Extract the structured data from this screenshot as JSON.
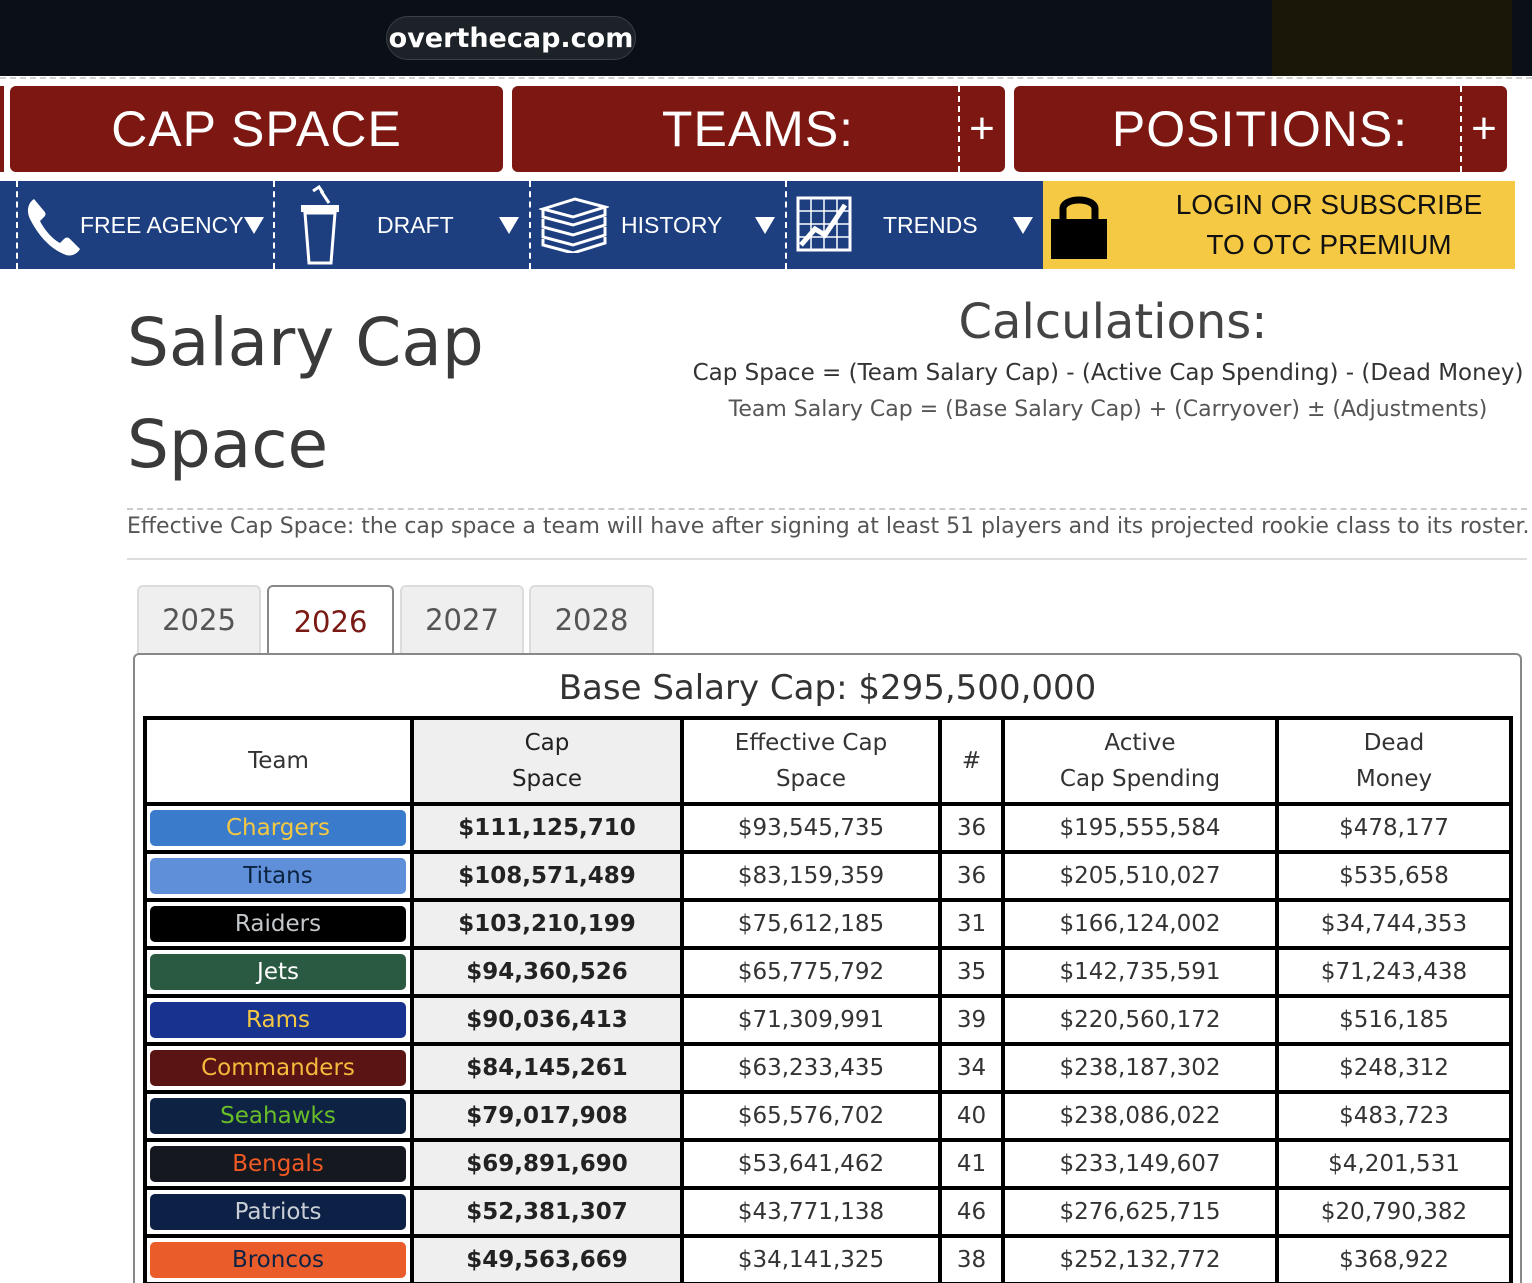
{
  "browser": {
    "url": "overthecap.com"
  },
  "main_nav": {
    "cap_space": "CAP SPACE",
    "teams": "TEAMS:",
    "positions": "POSITIONS:",
    "plus": "+"
  },
  "sub_nav": {
    "free_agency": "FREE AGENCY",
    "draft": "DRAFT",
    "history": "HISTORY",
    "trends": "TRENDS",
    "premium_line1": "LOGIN OR SUBSCRIBE",
    "premium_line2": "TO OTC PREMIUM"
  },
  "page": {
    "title_line1": "Salary Cap",
    "title_line2": "Space",
    "calc_title": "Calculations:",
    "calc_formula1": "Cap Space = (Team Salary Cap) - (Active Cap Spending) - (Dead Money)",
    "calc_formula2": "Team Salary Cap = (Base Salary Cap) + (Carryover) ± (Adjustments)",
    "effective_note": "Effective Cap Space: the cap space a team will have after signing at least 51 players and its projected rookie class to its roster."
  },
  "year_tabs": [
    "2025",
    "2026",
    "2027",
    "2028"
  ],
  "active_year": "2026",
  "base_salary_cap": "Base Salary Cap: $295,500,000",
  "table": {
    "headers": {
      "team": "Team",
      "cap_space_1": "Cap",
      "cap_space_2": "Space",
      "effective_1": "Effective Cap",
      "effective_2": "Space",
      "count": "#",
      "active_1": "Active",
      "active_2": "Cap Spending",
      "dead_1": "Dead",
      "dead_2": "Money"
    },
    "rows": [
      {
        "team": "Chargers",
        "bg": "#3a7ccb",
        "fg": "#f5c842",
        "cap_space": "$111,125,710",
        "effective": "$93,545,735",
        "count": "36",
        "active": "$195,555,584",
        "dead": "$478,177"
      },
      {
        "team": "Titans",
        "bg": "#5e8fd8",
        "fg": "#0c2340",
        "cap_space": "$108,571,489",
        "effective": "$83,159,359",
        "count": "36",
        "active": "$205,510,027",
        "dead": "$535,658"
      },
      {
        "team": "Raiders",
        "bg": "#000000",
        "fg": "#c4c8cb",
        "cap_space": "$103,210,199",
        "effective": "$75,612,185",
        "count": "31",
        "active": "$166,124,002",
        "dead": "$34,744,353"
      },
      {
        "team": "Jets",
        "bg": "#2a5a41",
        "fg": "#ffffff",
        "cap_space": "$94,360,526",
        "effective": "$65,775,792",
        "count": "35",
        "active": "$142,735,591",
        "dead": "$71,243,438"
      },
      {
        "team": "Rams",
        "bg": "#17328f",
        "fg": "#f3c744",
        "cap_space": "$90,036,413",
        "effective": "$71,309,991",
        "count": "39",
        "active": "$220,560,172",
        "dead": "$516,185"
      },
      {
        "team": "Commanders",
        "bg": "#5a1414",
        "fg": "#f5b93c",
        "cap_space": "$84,145,261",
        "effective": "$63,233,435",
        "count": "34",
        "active": "$238,187,302",
        "dead": "$248,312"
      },
      {
        "team": "Seahawks",
        "bg": "#0e2244",
        "fg": "#69be28",
        "cap_space": "$79,017,908",
        "effective": "$65,576,702",
        "count": "40",
        "active": "$238,086,022",
        "dead": "$483,723"
      },
      {
        "team": "Bengals",
        "bg": "#16181f",
        "fg": "#f05a24",
        "cap_space": "$69,891,690",
        "effective": "$53,641,462",
        "count": "41",
        "active": "$233,149,607",
        "dead": "$4,201,531"
      },
      {
        "team": "Patriots",
        "bg": "#0c2145",
        "fg": "#c9ced6",
        "cap_space": "$52,381,307",
        "effective": "$43,771,138",
        "count": "46",
        "active": "$276,625,715",
        "dead": "$20,790,382"
      },
      {
        "team": "Broncos",
        "bg": "#ea5c2a",
        "fg": "#0b2244",
        "cap_space": "$49,563,669",
        "effective": "$34,141,325",
        "count": "38",
        "active": "$252,132,772",
        "dead": "$368,922"
      }
    ]
  },
  "colors": {
    "nav_red": "#7c1711",
    "nav_blue": "#1d3f80",
    "premium_yellow": "#f6c944",
    "active_tab_text": "#7a1a14"
  },
  "icons": [
    "phone-icon",
    "podium-icon",
    "books-stack-icon",
    "trend-chart-icon",
    "lock-icon",
    "caret-down-icon"
  ]
}
